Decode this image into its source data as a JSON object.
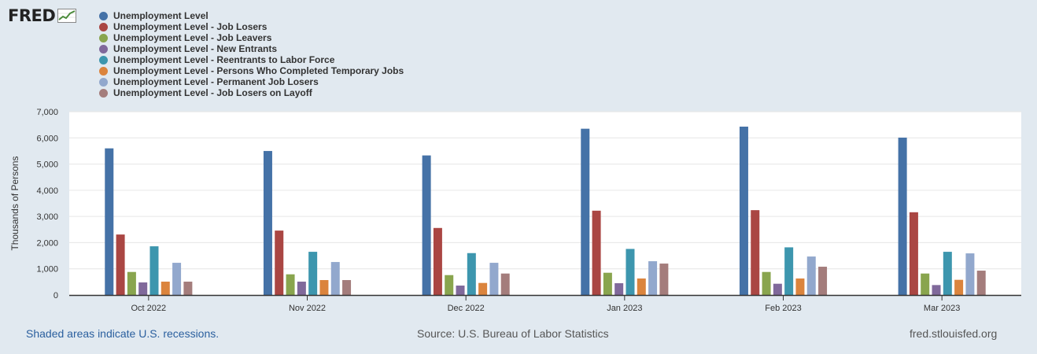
{
  "logo": {
    "text": "FRED",
    "icon": "line-graph-icon"
  },
  "chart_data": {
    "type": "bar",
    "ylabel": "Thousands of Persons",
    "xlabel": "",
    "ylim": [
      0,
      7000
    ],
    "yticks": [
      0,
      1000,
      2000,
      3000,
      4000,
      5000,
      6000,
      7000
    ],
    "ytick_labels": [
      "0",
      "1,000",
      "2,000",
      "3,000",
      "4,000",
      "5,000",
      "6,000",
      "7,000"
    ],
    "grid": true,
    "legend_position": "top-left",
    "categories": [
      "Oct 2022",
      "Nov 2022",
      "Dec 2022",
      "Jan 2023",
      "Feb 2023",
      "Mar 2023"
    ],
    "series": [
      {
        "name": "Unemployment Level",
        "color": "#4572a7",
        "values": [
          5600,
          5500,
          5330,
          6350,
          6430,
          6010
        ]
      },
      {
        "name": "Unemployment Level - Job Losers",
        "color": "#aa4643",
        "values": [
          2310,
          2460,
          2560,
          3220,
          3240,
          3160
        ]
      },
      {
        "name": "Unemployment Level - Job Leavers",
        "color": "#89a54e",
        "values": [
          880,
          790,
          760,
          850,
          880,
          820
        ]
      },
      {
        "name": "Unemployment Level - New Entrants",
        "color": "#80699b",
        "values": [
          480,
          510,
          360,
          450,
          430,
          380
        ]
      },
      {
        "name": "Unemployment Level - Reentrants to Labor Force",
        "color": "#3d96ae",
        "values": [
          1860,
          1650,
          1600,
          1760,
          1820,
          1650
        ]
      },
      {
        "name": "Unemployment Level - Persons Who Completed Temporary Jobs",
        "color": "#db843d",
        "values": [
          510,
          570,
          460,
          630,
          630,
          580
        ]
      },
      {
        "name": "Unemployment Level - Permanent Job Losers",
        "color": "#92a8cd",
        "values": [
          1230,
          1260,
          1230,
          1290,
          1470,
          1590
        ]
      },
      {
        "name": "Unemployment Level - Job Losers on Layoff",
        "color": "#a47d7c",
        "values": [
          510,
          570,
          820,
          1200,
          1080,
          930
        ]
      }
    ]
  },
  "footer": {
    "recessions": "Shaded areas indicate U.S. recessions.",
    "source": "Source: U.S. Bureau of Labor Statistics",
    "site": "fred.stlouisfed.org"
  }
}
